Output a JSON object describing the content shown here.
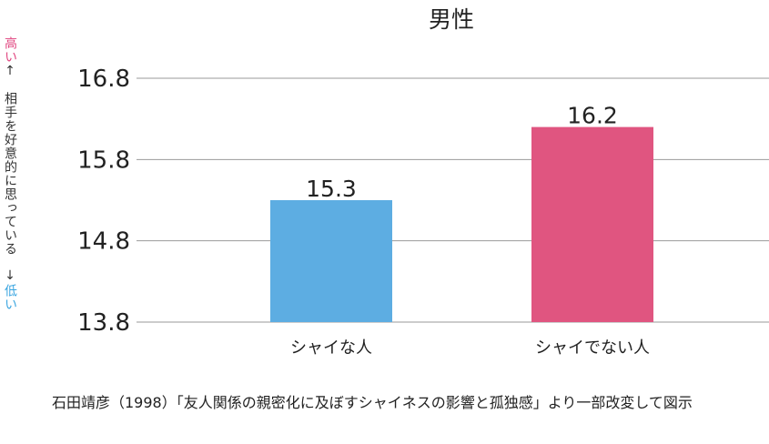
{
  "chart_data": {
    "type": "bar",
    "title": "男性",
    "categories": [
      "シャイな人",
      "シャイでない人"
    ],
    "values": [
      15.3,
      16.2
    ],
    "data_labels": [
      "15.3",
      "16.2"
    ],
    "colors": [
      "#5dade2",
      "#e05580"
    ],
    "ylim": [
      13.8,
      16.8
    ],
    "yticks": [
      "13.8",
      "14.8",
      "15.8",
      "16.8"
    ],
    "ylabel": {
      "high": "高い",
      "high_arrow": "↑",
      "text": "相手を好意的に思っている",
      "low_arrow": "↓",
      "low": "低い"
    },
    "grid": true
  },
  "source": "石田靖彦（1998）「友人関係の親密化に及ぼすシャイネスの影響と孤独感」より一部改変して図示"
}
